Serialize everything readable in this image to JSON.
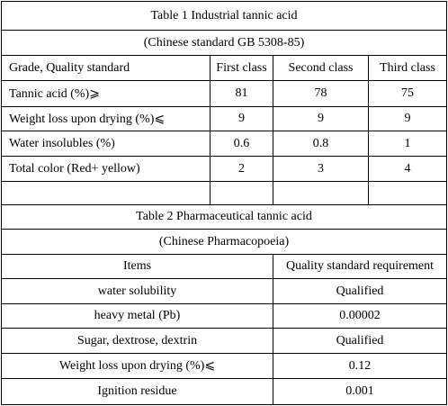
{
  "table1": {
    "title": "Table 1 Industrial tannic acid",
    "subtitle": "(Chinese standard GB 5308-85)",
    "header": [
      "Grade, Quality standard",
      "First class",
      "Second class",
      "Third class"
    ],
    "rows": [
      [
        "Tannic acid (%)⩾",
        "81",
        "78",
        "75"
      ],
      [
        "Weight loss upon drying (%)⩽",
        "9",
        "9",
        "9"
      ],
      [
        "Water insolubles (%)",
        "0.6",
        "0.8",
        "1"
      ],
      [
        "Total color (Red+ yellow)",
        "2",
        "3",
        "4"
      ]
    ]
  },
  "table2": {
    "title": "Table 2 Pharmaceutical tannic acid",
    "subtitle": "(Chinese Pharmacopoeia)",
    "header": [
      "Items",
      "Quality standard requirement"
    ],
    "rows": [
      [
        "water solubility",
        "Qualified"
      ],
      [
        "heavy metal (Pb)",
        "0.00002"
      ],
      [
        "Sugar, dextrose, dextrin",
        "Qualified"
      ],
      [
        "Weight loss upon drying (%)⩽",
        "0.12"
      ],
      [
        "Ignition residue",
        "0.001"
      ]
    ]
  }
}
